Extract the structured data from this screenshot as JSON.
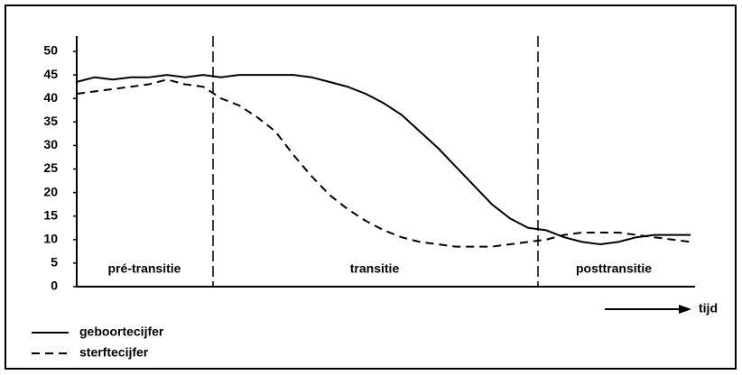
{
  "chart_data": {
    "type": "line",
    "categories": [
      null,
      null,
      null,
      null,
      null,
      null,
      null,
      null,
      null,
      null,
      null,
      null,
      null,
      null,
      null,
      null,
      null,
      null,
      null,
      null,
      null,
      null,
      null,
      null,
      null,
      null,
      null,
      null,
      null,
      null,
      null,
      null,
      null,
      null,
      null
    ],
    "series": [
      {
        "name": "geboortecijfer",
        "color": "#000000",
        "dash": false,
        "values": [
          43.5,
          44.5,
          44,
          44.5,
          44.5,
          45,
          44.5,
          45,
          44.5,
          45,
          45,
          45,
          45,
          44.5,
          43.5,
          42.5,
          41,
          39,
          36.5,
          33,
          29.5,
          25.5,
          21.5,
          17.5,
          14.5,
          12.5,
          12,
          10.5,
          9.5,
          9,
          9.5,
          10.5,
          11,
          11,
          11
        ]
      },
      {
        "name": "sterftecijfer",
        "color": "#000000",
        "dash": true,
        "values": [
          41,
          41.5,
          42,
          42.5,
          43,
          44,
          43,
          42.5,
          40,
          38.5,
          36,
          33,
          28,
          23.5,
          19.5,
          16.5,
          14,
          12,
          10.5,
          9.5,
          9,
          8.5,
          8.5,
          8.5,
          9,
          9.5,
          10,
          11,
          11.5,
          11.5,
          11.5,
          11,
          10.5,
          10,
          9.5
        ]
      }
    ],
    "ylim": [
      0,
      50
    ],
    "yticks": [
      0,
      5,
      10,
      15,
      20,
      25,
      30,
      35,
      40,
      45,
      50
    ],
    "xlabel": "tijd",
    "phases": [
      "pré-transitie",
      "transitie",
      "posttransitie"
    ]
  }
}
